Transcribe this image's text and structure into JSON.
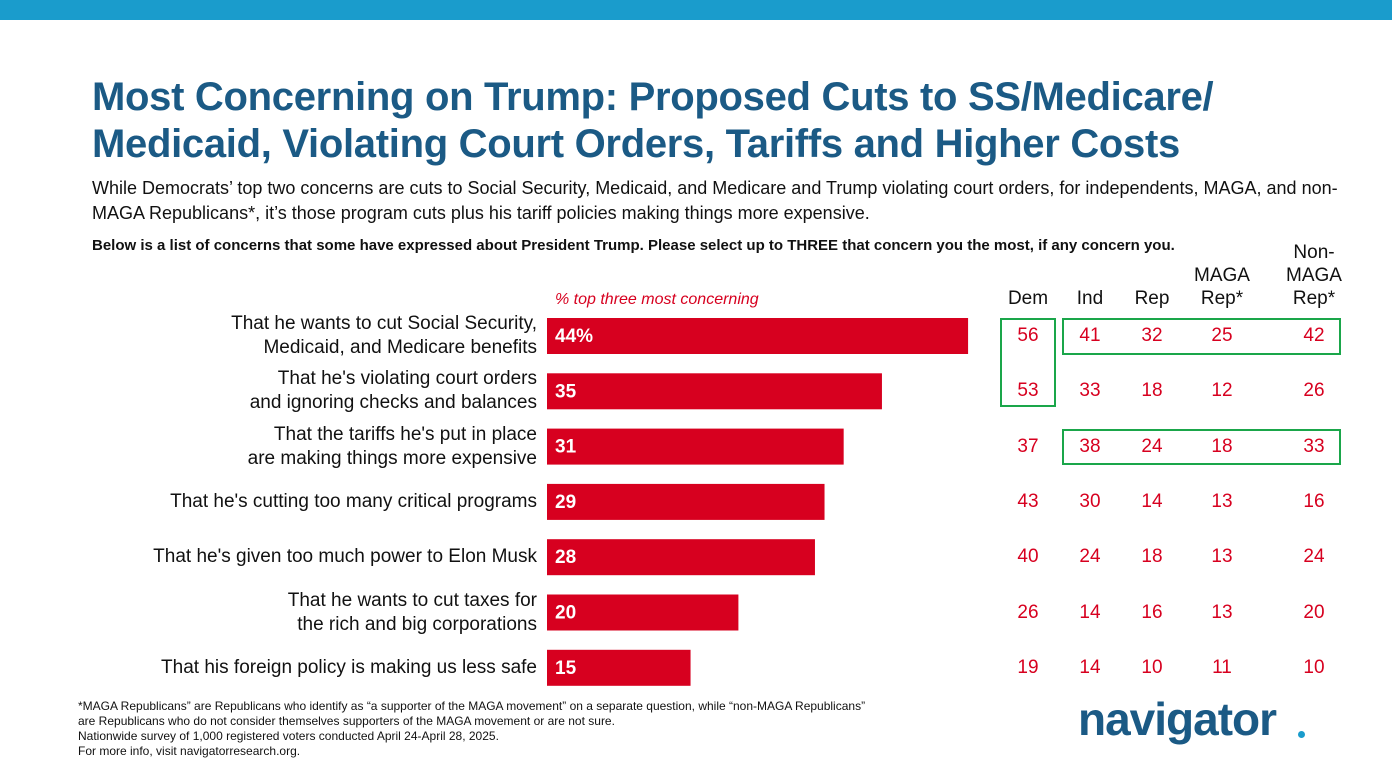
{
  "header": {
    "title": "Most Concerning on Trump: Proposed Cuts to SS/Medicare/ Medicaid, Violating Court Orders, Tariffs and Higher Costs",
    "subtitle": "While Democrats’ top two concerns are cuts to Social Security, Medicaid, and Medicare and Trump violating court orders, for independents, MAGA, and non-MAGA Republicans*, it’s those program cuts plus his tariff policies making things more expensive.",
    "question": "Below is a list of concerns that some have expressed about President Trump. Please select up to THREE that concern you the most, if any concern you."
  },
  "chart_data": {
    "type": "bar",
    "orientation": "horizontal",
    "label": "% top three most concerning",
    "color": "#d7001f",
    "categories": [
      "That he wants to cut Social Security,\nMedicaid, and Medicare benefits",
      "That he's violating court orders\nand ignoring checks and balances",
      "That the tariffs he's put in place\nare making things more expensive",
      "That he's cutting too many critical programs",
      "That he's given too much power to Elon Musk",
      "That he wants to cut taxes for\nthe rich and big corporations",
      "That his foreign policy is making us less safe"
    ],
    "values": [
      44,
      35,
      31,
      29,
      28,
      20,
      15
    ],
    "value_labels": [
      "44%",
      "35",
      "31",
      "29",
      "28",
      "20",
      "15"
    ]
  },
  "table": {
    "columns": [
      "Dem",
      "Ind",
      "Rep",
      "MAGA Rep*",
      "Non-MAGA Rep*"
    ],
    "rows": [
      [
        "56",
        "41",
        "32",
        "25",
        "42"
      ],
      [
        "53",
        "33",
        "18",
        "12",
        "26"
      ],
      [
        "37",
        "38",
        "24",
        "18",
        "33"
      ],
      [
        "43",
        "30",
        "14",
        "13",
        "16"
      ],
      [
        "40",
        "24",
        "18",
        "13",
        "24"
      ],
      [
        "26",
        "14",
        "16",
        "13",
        "20"
      ],
      [
        "19",
        "14",
        "10",
        "11",
        "10"
      ]
    ]
  },
  "footnotes": [
    "*MAGA Republicans” are Republicans who identify as “a supporter of the MAGA movement” on a separate question, while “non-MAGA Republicans” are Republicans who do not consider themselves supporters of the MAGA movement or are not sure.",
    "Nationwide survey of 1,000 registered voters conducted April 24-April 28, 2025.",
    "For more info, visit navigatorresearch.org."
  ],
  "logo": "navigator"
}
